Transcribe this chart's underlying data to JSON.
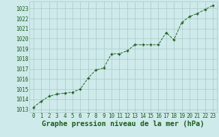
{
  "x": [
    0,
    1,
    2,
    3,
    4,
    5,
    6,
    7,
    8,
    9,
    10,
    11,
    12,
    13,
    14,
    15,
    16,
    17,
    18,
    19,
    20,
    21,
    22,
    23
  ],
  "y": [
    1013.2,
    1013.8,
    1014.3,
    1014.5,
    1014.6,
    1014.7,
    1015.0,
    1016.1,
    1016.9,
    1017.1,
    1018.5,
    1018.5,
    1018.8,
    1019.4,
    1019.4,
    1019.4,
    1019.4,
    1020.6,
    1019.9,
    1021.6,
    1022.2,
    1022.5,
    1022.9,
    1023.3
  ],
  "ylim": [
    1012.7,
    1023.7
  ],
  "xlim": [
    -0.5,
    23.5
  ],
  "yticks": [
    1013,
    1014,
    1015,
    1016,
    1017,
    1018,
    1019,
    1020,
    1021,
    1022,
    1023
  ],
  "xticks": [
    0,
    1,
    2,
    3,
    4,
    5,
    6,
    7,
    8,
    9,
    10,
    11,
    12,
    13,
    14,
    15,
    16,
    17,
    18,
    19,
    20,
    21,
    22,
    23
  ],
  "line_color": "#1a5c1a",
  "marker_color": "#1a5c1a",
  "bg_color": "#ceeaea",
  "grid_color": "#aac8c8",
  "xlabel": "Graphe pression niveau de la mer (hPa)",
  "xlabel_color": "#1a5c1a",
  "tick_color": "#1a5c1a",
  "tick_fontsize": 5.5,
  "xlabel_fontsize": 7.5
}
